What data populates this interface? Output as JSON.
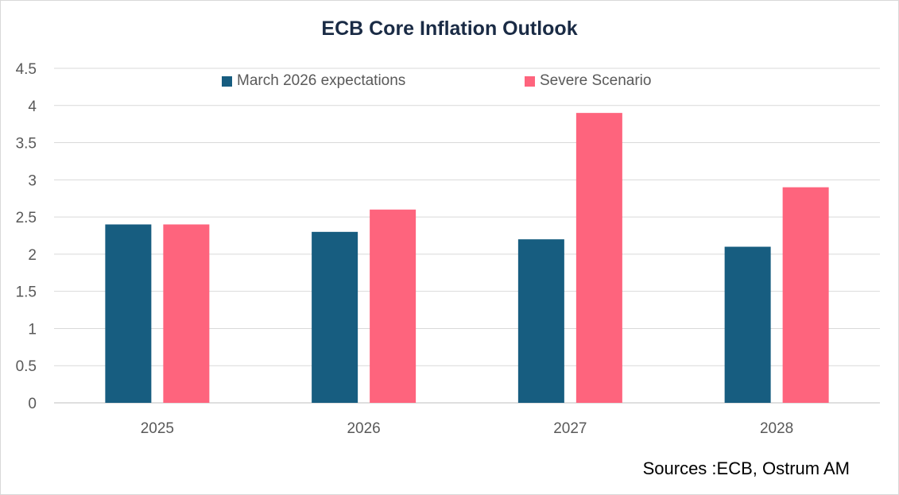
{
  "chart_data": {
    "type": "bar",
    "title": "ECB Core Inflation Outlook",
    "categories": [
      "2025",
      "2026",
      "2027",
      "2028"
    ],
    "series": [
      {
        "name": "March 2026 expectations",
        "values": [
          2.4,
          2.3,
          2.2,
          2.1
        ],
        "color": "#175d80"
      },
      {
        "name": "Severe Scenario",
        "values": [
          2.4,
          2.6,
          3.9,
          2.9
        ],
        "color": "#fe647d"
      }
    ],
    "ylim": [
      0,
      4.5
    ],
    "yticks": [
      "0",
      "0.5",
      "1",
      "1.5",
      "2",
      "2.5",
      "3",
      "3.5",
      "4",
      "4.5"
    ],
    "xlabel": "",
    "ylabel": "",
    "grid": true,
    "legend": "top"
  },
  "source": "Sources :ECB, Ostrum AM"
}
